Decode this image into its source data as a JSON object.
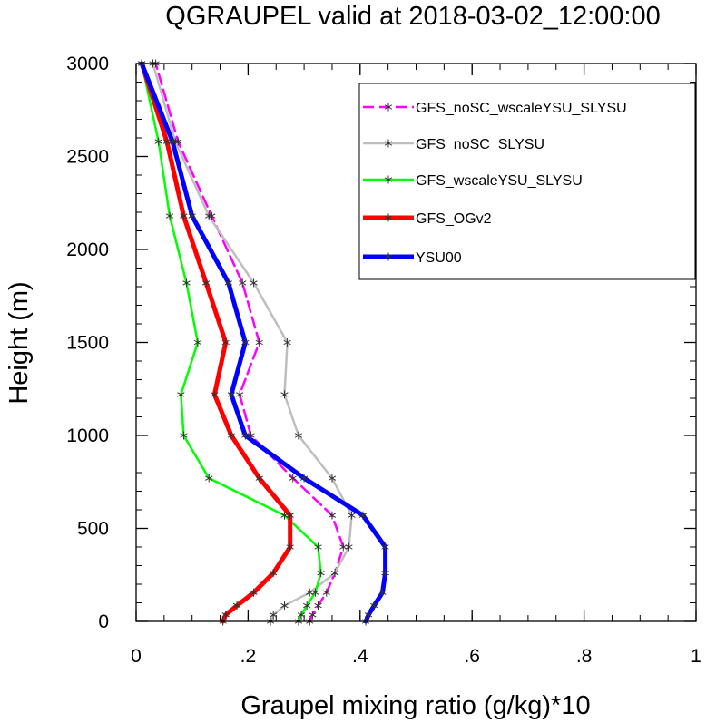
{
  "chart_data": {
    "type": "line",
    "title": "QGRAUPEL valid at 2018-03-02_12:00:00",
    "xlabel": "Graupel mixing ratio (g/kg)*10",
    "ylabel": "Height (m)",
    "xlim": [
      0,
      1
    ],
    "ylim": [
      0,
      3000
    ],
    "xticks": [
      0,
      0.2,
      0.4,
      0.6,
      0.8,
      1
    ],
    "xtick_labels": [
      "0",
      ".2",
      ".4",
      ".6",
      ".8",
      "1"
    ],
    "yticks": [
      0,
      500,
      1000,
      1500,
      2000,
      2500,
      3000
    ],
    "ytick_labels": [
      "0",
      "500",
      "1000",
      "1500",
      "2000",
      "2500",
      "3000"
    ],
    "grid": false,
    "legend_position": "top-right",
    "heights": [
      0,
      35,
      85,
      155,
      260,
      400,
      570,
      770,
      1000,
      1220,
      1500,
      1820,
      2180,
      2580,
      3000
    ],
    "series": [
      {
        "name": "GFS_noSC_wscaleYSU_SLYSU",
        "color": "#ff00ff",
        "dash": "dash",
        "width": 2.5,
        "values": [
          0.31,
          0.315,
          0.325,
          0.34,
          0.355,
          0.37,
          0.35,
          0.28,
          0.205,
          0.185,
          0.22,
          0.19,
          0.135,
          0.075,
          0.035
        ]
      },
      {
        "name": "GFS_noSC_SLYSU",
        "color": "#bebebe",
        "dash": "solid",
        "width": 2.5,
        "values": [
          0.24,
          0.245,
          0.265,
          0.31,
          0.355,
          0.38,
          0.385,
          0.35,
          0.29,
          0.265,
          0.27,
          0.21,
          0.13,
          0.07,
          0.03
        ]
      },
      {
        "name": "GFS_wscaleYSU_SLYSU",
        "color": "#00ff00",
        "dash": "solid",
        "width": 2.5,
        "values": [
          0.29,
          0.295,
          0.305,
          0.32,
          0.33,
          0.325,
          0.265,
          0.13,
          0.085,
          0.08,
          0.11,
          0.09,
          0.06,
          0.04,
          0.01
        ]
      },
      {
        "name": "GFS_OGv2",
        "color": "#ff0000",
        "dash": "solid",
        "width": 5,
        "values": [
          0.155,
          0.16,
          0.18,
          0.21,
          0.245,
          0.275,
          0.275,
          0.22,
          0.17,
          0.14,
          0.16,
          0.125,
          0.085,
          0.055,
          0.01
        ]
      },
      {
        "name": "YSU00",
        "color": "#0000ff",
        "dash": "solid",
        "width": 5,
        "values": [
          0.41,
          0.415,
          0.425,
          0.44,
          0.445,
          0.445,
          0.405,
          0.3,
          0.195,
          0.17,
          0.195,
          0.165,
          0.1,
          0.065,
          0.01
        ]
      }
    ]
  }
}
